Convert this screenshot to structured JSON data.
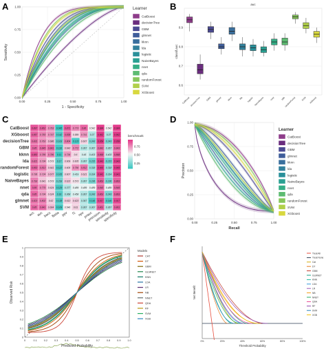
{
  "panel_labels": [
    "A",
    "B",
    "C",
    "D",
    "E",
    "F"
  ],
  "learners": [
    "CatBoost",
    "decisionTree",
    "GBM",
    "glmnet",
    "kknn",
    "lda",
    "logistic",
    "NaiveBayes",
    "nnet",
    "qda",
    "randomForest",
    "SVM",
    "XGboost"
  ],
  "learner_colors": [
    "#8e3c8a",
    "#6a2d7e",
    "#4b4a92",
    "#3f5d9a",
    "#3a6f9d",
    "#33819c",
    "#2a909a",
    "#2aa092",
    "#35ae86",
    "#5dbb72",
    "#86c65b",
    "#b1d04a",
    "#d8d83f"
  ],
  "chart_data": [
    {
      "id": "A",
      "type": "line",
      "xlabel": "1 - Specificity",
      "ylabel": "Sensitivity",
      "xlim": [
        0,
        1
      ],
      "ylim": [
        0,
        1
      ],
      "xticks": [
        "0.00",
        "0.25",
        "0.50",
        "0.75",
        "1.00"
      ],
      "yticks": [
        "0.00",
        "0.25",
        "0.50",
        "0.75",
        "1.00"
      ],
      "legend_title": "Learner",
      "series_auc_shape": [
        0.85,
        0.62,
        0.8,
        0.78,
        0.72,
        0.76,
        0.76,
        0.74,
        0.73,
        0.7,
        0.83,
        0.77,
        0.82
      ]
    },
    {
      "id": "B",
      "type": "box",
      "title": "auc",
      "ylabel": "classif.auc",
      "ylim": [
        0.55,
        1.0
      ],
      "yticks": [
        "0.6",
        "0.7",
        "0.8",
        "0.9"
      ],
      "categories": [
        "CatBoost",
        "decisionTree",
        "GBM",
        "glmnet",
        "kknn",
        "lda",
        "logistic",
        "NaiveBayes",
        "nnet",
        "qda",
        "randomForest",
        "SVM",
        "XGboost"
      ],
      "colors": [
        "#8e3c8a",
        "#6a2d7e",
        "#4b4a92",
        "#3f5d9a",
        "#3a6f9d",
        "#33819c",
        "#2a909a",
        "#2aa092",
        "#35ae86",
        "#5dbb72",
        "#86c65b",
        "#b1d04a",
        "#d8d83f"
      ],
      "boxes": [
        {
          "min": 0.88,
          "q1": 0.925,
          "median": 0.94,
          "q3": 0.955,
          "max": 0.97
        },
        {
          "min": 0.63,
          "q1": 0.66,
          "median": 0.68,
          "q3": 0.71,
          "max": 0.76
        },
        {
          "min": 0.84,
          "q1": 0.875,
          "median": 0.89,
          "q3": 0.905,
          "max": 0.93
        },
        {
          "min": 0.76,
          "q1": 0.79,
          "median": 0.8,
          "q3": 0.815,
          "max": 0.85
        },
        {
          "min": 0.83,
          "q1": 0.865,
          "median": 0.88,
          "q3": 0.9,
          "max": 0.93
        },
        {
          "min": 0.75,
          "q1": 0.785,
          "median": 0.8,
          "q3": 0.815,
          "max": 0.85
        },
        {
          "min": 0.75,
          "q1": 0.78,
          "median": 0.795,
          "q3": 0.81,
          "max": 0.84
        },
        {
          "min": 0.75,
          "q1": 0.77,
          "median": 0.785,
          "q3": 0.8,
          "max": 0.83
        },
        {
          "min": 0.78,
          "q1": 0.81,
          "median": 0.825,
          "q3": 0.84,
          "max": 0.87
        },
        {
          "min": 0.78,
          "q1": 0.81,
          "median": 0.825,
          "q3": 0.845,
          "max": 0.87
        },
        {
          "min": 0.92,
          "q1": 0.945,
          "median": 0.955,
          "q3": 0.965,
          "max": 0.98
        },
        {
          "min": 0.87,
          "q1": 0.895,
          "median": 0.91,
          "q3": 0.925,
          "max": 0.95
        },
        {
          "min": 0.82,
          "q1": 0.85,
          "median": 0.865,
          "q3": 0.88,
          "max": 0.9
        }
      ]
    },
    {
      "id": "C",
      "type": "heatmap",
      "rows": [
        "CatBoost",
        "XGboost",
        "decisionTree",
        "GBM",
        "kknn",
        "lda",
        "randomForest",
        "logistic",
        "NaiveBayes",
        "nnet",
        "qda",
        "glmnet",
        "SVM"
      ],
      "cols": [
        "acc",
        "auc",
        "bacc",
        "fbeta",
        "ppv",
        "f1",
        "npv",
        "prauc",
        "precision",
        "sensitivity",
        "specificity"
      ],
      "legend_title": "benchmark",
      "legend_ticks": [
        "0.75",
        "0.50",
        "0.25"
      ],
      "values": [
        [
          0.897,
          0.862,
          0.763,
          0.045,
          0.871,
          0.773,
          0.86,
          0.542,
          0.984,
          0.542,
          0.984
        ],
        [
          0.857,
          0.783,
          0.747,
          0.142,
          0.838,
          0.589,
          0.741,
          0.37,
          0.962,
          0.37,
          0.962
        ],
        [
          0.831,
          0.763,
          0.686,
          0.163,
          0.804,
          0.123,
          0.607,
          0.243,
          0.958,
          0.243,
          0.958
        ],
        [
          0.85,
          0.845,
          0.841,
          0.116,
          0.643,
          0.772,
          0.367,
          0.367,
          0.843,
          0.367,
          0.843
        ],
        [
          0.883,
          0.785,
          0.786,
          0.11,
          0.736,
          0.6,
          0.45,
          0.403,
          0.868,
          0.403,
          0.868
        ],
        [
          0.821,
          0.734,
          0.573,
          0.17,
          0.609,
          0.605,
          0.367,
          0.215,
          0.943,
          0.215,
          0.943
        ],
        [
          0.853,
          0.813,
          0.641,
          0.122,
          0.605,
          0.756,
          0.812,
          0.318,
          0.965,
          0.318,
          0.965
        ],
        [
          0.736,
          0.724,
          0.677,
          0.165,
          0.607,
          0.419,
          0.621,
          0.314,
          0.941,
          0.314,
          0.941
        ],
        [
          0.793,
          0.641,
          0.573,
          0.218,
          0.623,
          0.573,
          0.367,
          0.236,
          0.863,
          0.236,
          0.863
        ],
        [
          0.85,
          0.775,
          0.624,
          0.129,
          0.377,
          0.489,
          0.489,
          0.489,
          0.845,
          0.489,
          0.845
        ],
        [
          0.85,
          0.734,
          0.624,
          0.16,
          0.368,
          0.458,
          0.367,
          0.243,
          0.863,
          0.243,
          0.863
        ],
        [
          0.823,
          0.802,
          0.62,
          0.138,
          0.613,
          0.623,
          0.367,
          0.146,
          0.917,
          0.146,
          0.917
        ],
        [
          0.85,
          0.841,
          0.664,
          0.109,
          0.546,
          0.61,
          0.367,
          0.367,
          0.861,
          0.367,
          0.861
        ]
      ]
    },
    {
      "id": "D",
      "type": "line",
      "xlabel": "Recall",
      "ylabel": "Precision",
      "xlim": [
        0,
        1
      ],
      "ylim": [
        0,
        1
      ],
      "xticks": [
        "0.00",
        "0.25",
        "0.50",
        "0.75",
        "1.00"
      ],
      "yticks": [
        "0.00",
        "0.25",
        "0.50",
        "0.75",
        "1.00"
      ],
      "legend_title": "Learner",
      "series_decay": [
        1.6,
        0.6,
        1.3,
        1.1,
        0.9,
        1.0,
        1.0,
        0.85,
        0.95,
        0.8,
        1.5,
        1.05,
        1.4
      ]
    },
    {
      "id": "E",
      "type": "line",
      "xlabel": "Predicted Probability",
      "ylabel": "Observed Risk",
      "xticks": [
        "0",
        "0.1",
        "0.2",
        "0.3",
        "0.4",
        "0.5",
        "0.6",
        "0.7",
        "0.8",
        "0.9",
        "1.0"
      ],
      "yticks": [
        "0",
        "0.1",
        "0.2",
        "0.3",
        "0.4",
        "0.5",
        "0.6",
        "0.7",
        "0.8",
        "0.9",
        "1"
      ],
      "legend_title": "Models",
      "models": [
        "CAT",
        "DT",
        "GBM",
        "GLMNET",
        "KNN",
        "LDA",
        "LR",
        "NB",
        "NNET",
        "QDA",
        "RF",
        "SVM",
        "XGB"
      ],
      "colors": [
        "#b03a2e",
        "#d35400",
        "#7d6608",
        "#1e8449",
        "#117a65",
        "#2471a3",
        "#5b2c6f",
        "#a04000",
        "#616a6b",
        "#cb4335",
        "#b7950b",
        "#27ae60",
        "#2e86c1"
      ]
    },
    {
      "id": "F",
      "type": "line",
      "xlabel": "Threshold Probability",
      "ylabel": "Net Benefit",
      "xticks": [
        "0%",
        "20%",
        "40%",
        "60%",
        "80%",
        "100%"
      ],
      "legend_items": [
        "Treat All",
        "Treat None",
        "Cat",
        "DT",
        "GBM",
        "GLMNET",
        "KNN",
        "LDA",
        "LR",
        "NB",
        "NNET",
        "QDA",
        "RF",
        "SVM",
        "XGB"
      ],
      "colors": [
        "#e74c3c",
        "#2c3e50",
        "#d4ac0d",
        "#e67e22",
        "#c0392b",
        "#16a085",
        "#1abc9c",
        "#3498db",
        "#9b59b6",
        "#f39c12",
        "#27ae60",
        "#e84393",
        "#8e44ad",
        "#2980b9",
        "#f1c40f"
      ]
    }
  ]
}
